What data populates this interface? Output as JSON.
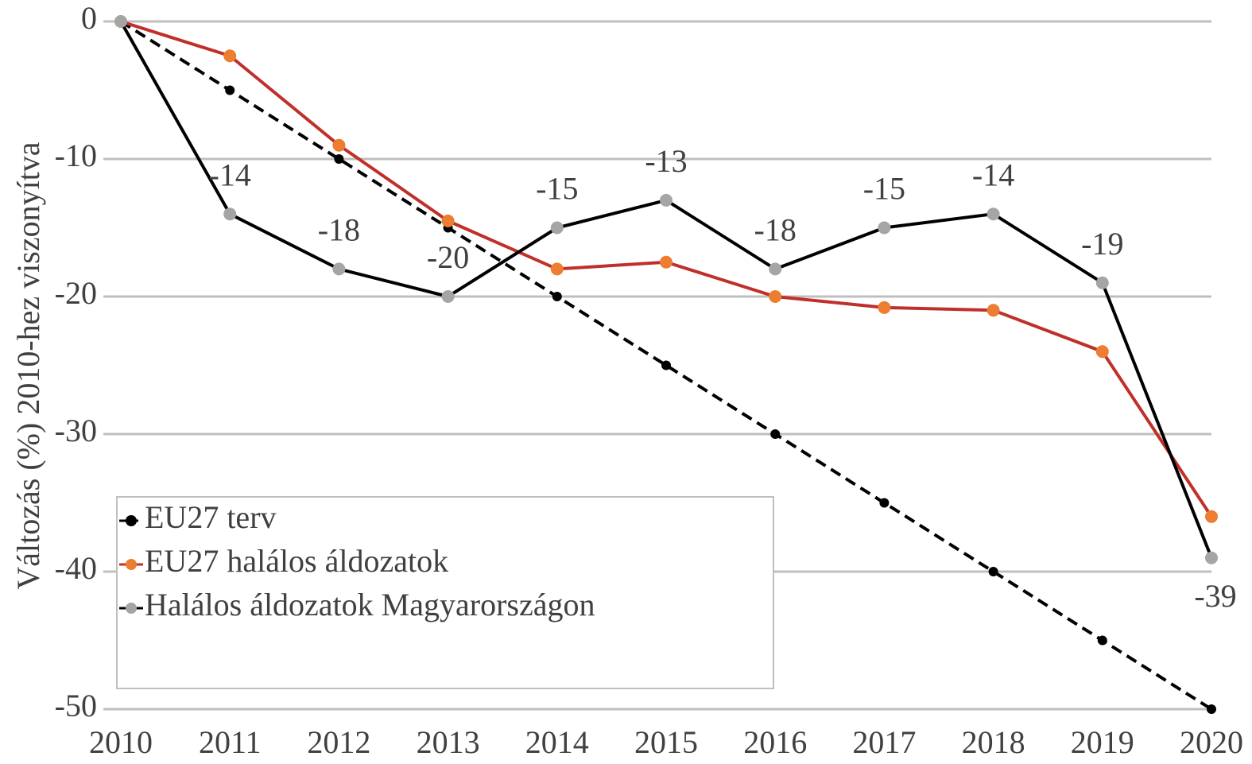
{
  "chart_data": {
    "type": "line",
    "y_label": "Változás (%) 2010-hez viszonyítva",
    "x": [
      2010,
      2011,
      2012,
      2013,
      2014,
      2015,
      2016,
      2017,
      2018,
      2019,
      2020
    ],
    "xlim": [
      2010,
      2020
    ],
    "xticks": [
      2010,
      2011,
      2012,
      2013,
      2014,
      2015,
      2016,
      2017,
      2018,
      2019,
      2020
    ],
    "ylim": [
      -50,
      0
    ],
    "yticks": [
      0,
      -10,
      -20,
      -30,
      -40,
      -50
    ],
    "grid": true,
    "legend": "lower left",
    "series": [
      {
        "name": "EU27 terv",
        "color": "#000000",
        "marker_color": "#000000",
        "dash": true,
        "values": [
          0,
          -5,
          -10,
          -15,
          -20,
          -25,
          -30,
          -35,
          -40,
          -45,
          -50
        ]
      },
      {
        "name": "EU27 halálos áldozatok",
        "color": "#c0302a",
        "marker_color": "#ed7d31",
        "dash": false,
        "values": [
          0,
          -2.5,
          -9,
          -14.5,
          -18,
          -17.5,
          -20,
          -20.8,
          -21,
          -24,
          -36
        ]
      },
      {
        "name": "Halálos áldozatok Magyarországon",
        "color": "#000000",
        "marker_color": "#a5a5a5",
        "dash": false,
        "values": [
          0,
          -14,
          -18,
          -20,
          -15,
          -13,
          -18,
          -15,
          -14,
          -19,
          -39
        ],
        "value_labels": [
          null,
          "-14",
          "-18",
          "-20",
          "-15",
          "-13",
          "-18",
          "-15",
          "-14",
          "-19",
          "-39"
        ]
      }
    ]
  }
}
